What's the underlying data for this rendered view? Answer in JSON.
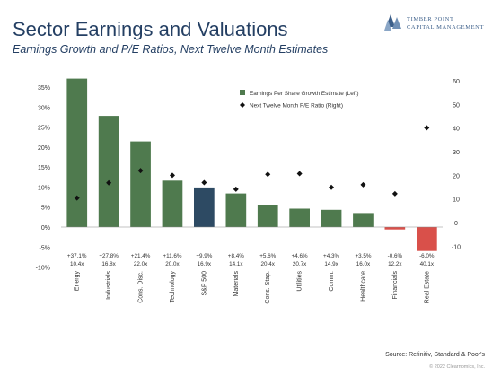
{
  "header": {
    "title": "Sector Earnings and Valuations",
    "subtitle": "Earnings Growth and P/E Ratios, Next Twelve Month Estimates"
  },
  "logo": {
    "line1": "TIMBER POINT",
    "line2": "CAPITAL MANAGEMENT"
  },
  "footer": {
    "source": "Source: Refinitiv, Standard & Poor's",
    "copyright": "© 2022 Clearnomics, Inc."
  },
  "colors": {
    "bar_positive": "#4f7a4e",
    "bar_sp500": "#2d4a63",
    "bar_negative": "#d9504a",
    "marker": "#111111",
    "title": "#243f63"
  },
  "chart_data": {
    "type": "bar",
    "categories": [
      "Energy",
      "Industrials",
      "Cons. Disc.",
      "Technology",
      "S&P 500",
      "Materials",
      "Cons. Stap.",
      "Utilities",
      "Comm.",
      "Healthcare",
      "Financials",
      "Real Estate"
    ],
    "series": [
      {
        "name": "Earnings Per Share Growth Estimate (Left)",
        "type": "bar",
        "axis": "left",
        "values": [
          37.1,
          27.8,
          21.4,
          11.6,
          9.9,
          8.4,
          5.6,
          4.6,
          4.3,
          3.5,
          -0.6,
          -6.0
        ]
      },
      {
        "name": "Next Twelve Month P/E Ratio (Right)",
        "type": "scatter",
        "axis": "right",
        "values": [
          10.4,
          16.8,
          22.0,
          20.0,
          16.9,
          14.1,
          20.4,
          20.7,
          14.9,
          16.0,
          12.2,
          40.1
        ]
      }
    ],
    "growth_labels": [
      "+37.1%",
      "+27.8%",
      "+21.4%",
      "+11.6%",
      "+9.9%",
      "+8.4%",
      "+5.6%",
      "+4.6%",
      "+4.3%",
      "+3.5%",
      "-0.6%",
      "-6.0%"
    ],
    "pe_labels": [
      "10.4x",
      "16.8x",
      "22.0x",
      "20.0x",
      "16.9x",
      "14.1x",
      "20.4x",
      "20.7x",
      "14.9x",
      "16.0x",
      "12.2x",
      "40.1x"
    ],
    "left_ticks": [
      "35%",
      "30%",
      "25%",
      "20%",
      "15%",
      "10%",
      "5%",
      "0%",
      "-5%",
      "-10%"
    ],
    "left_tick_values": [
      35,
      30,
      25,
      20,
      15,
      10,
      5,
      0,
      -5,
      -10
    ],
    "right_ticks": [
      "60",
      "50",
      "40",
      "30",
      "20",
      "10",
      "0",
      "-10"
    ],
    "right_tick_values": [
      60,
      50,
      40,
      30,
      20,
      10,
      0,
      -10
    ],
    "ylim_left": [
      -10,
      35
    ],
    "ylim_right": [
      -10,
      60
    ],
    "highlight_category": "S&P 500",
    "grid": false,
    "legend_position": "top-right"
  }
}
